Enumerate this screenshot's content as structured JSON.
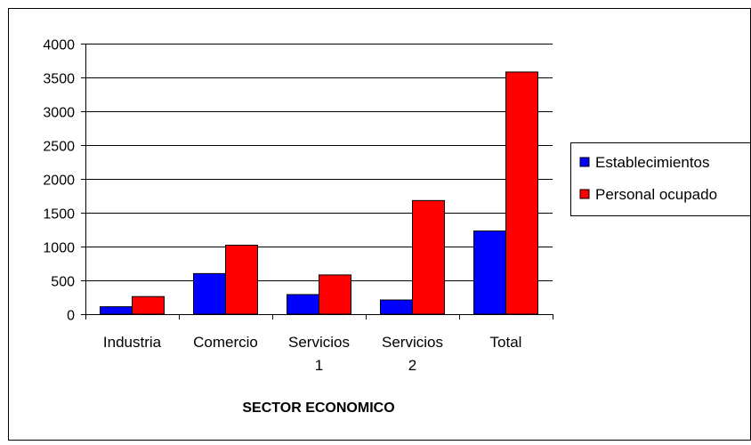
{
  "chart_data": {
    "type": "bar",
    "categories": [
      [
        "Industria"
      ],
      [
        "Comercio"
      ],
      [
        "Servicios",
        "1"
      ],
      [
        "Servicios",
        "2"
      ],
      [
        "Total"
      ]
    ],
    "series": [
      {
        "name": "Establecimientos",
        "values": [
          110,
          600,
          290,
          210,
          1230
        ],
        "color": "#0000FF"
      },
      {
        "name": "Personal ocupado",
        "values": [
          260,
          1020,
          580,
          1680,
          3580
        ],
        "color": "#FF0000"
      }
    ],
    "title": "",
    "xlabel": "SECTOR ECONOMICO",
    "ylabel": "",
    "ylim": [
      0,
      4000
    ],
    "yticks": [
      0,
      500,
      1000,
      1500,
      2000,
      2500,
      3000,
      3500,
      4000
    ],
    "grid": true,
    "legend_position": "right"
  }
}
